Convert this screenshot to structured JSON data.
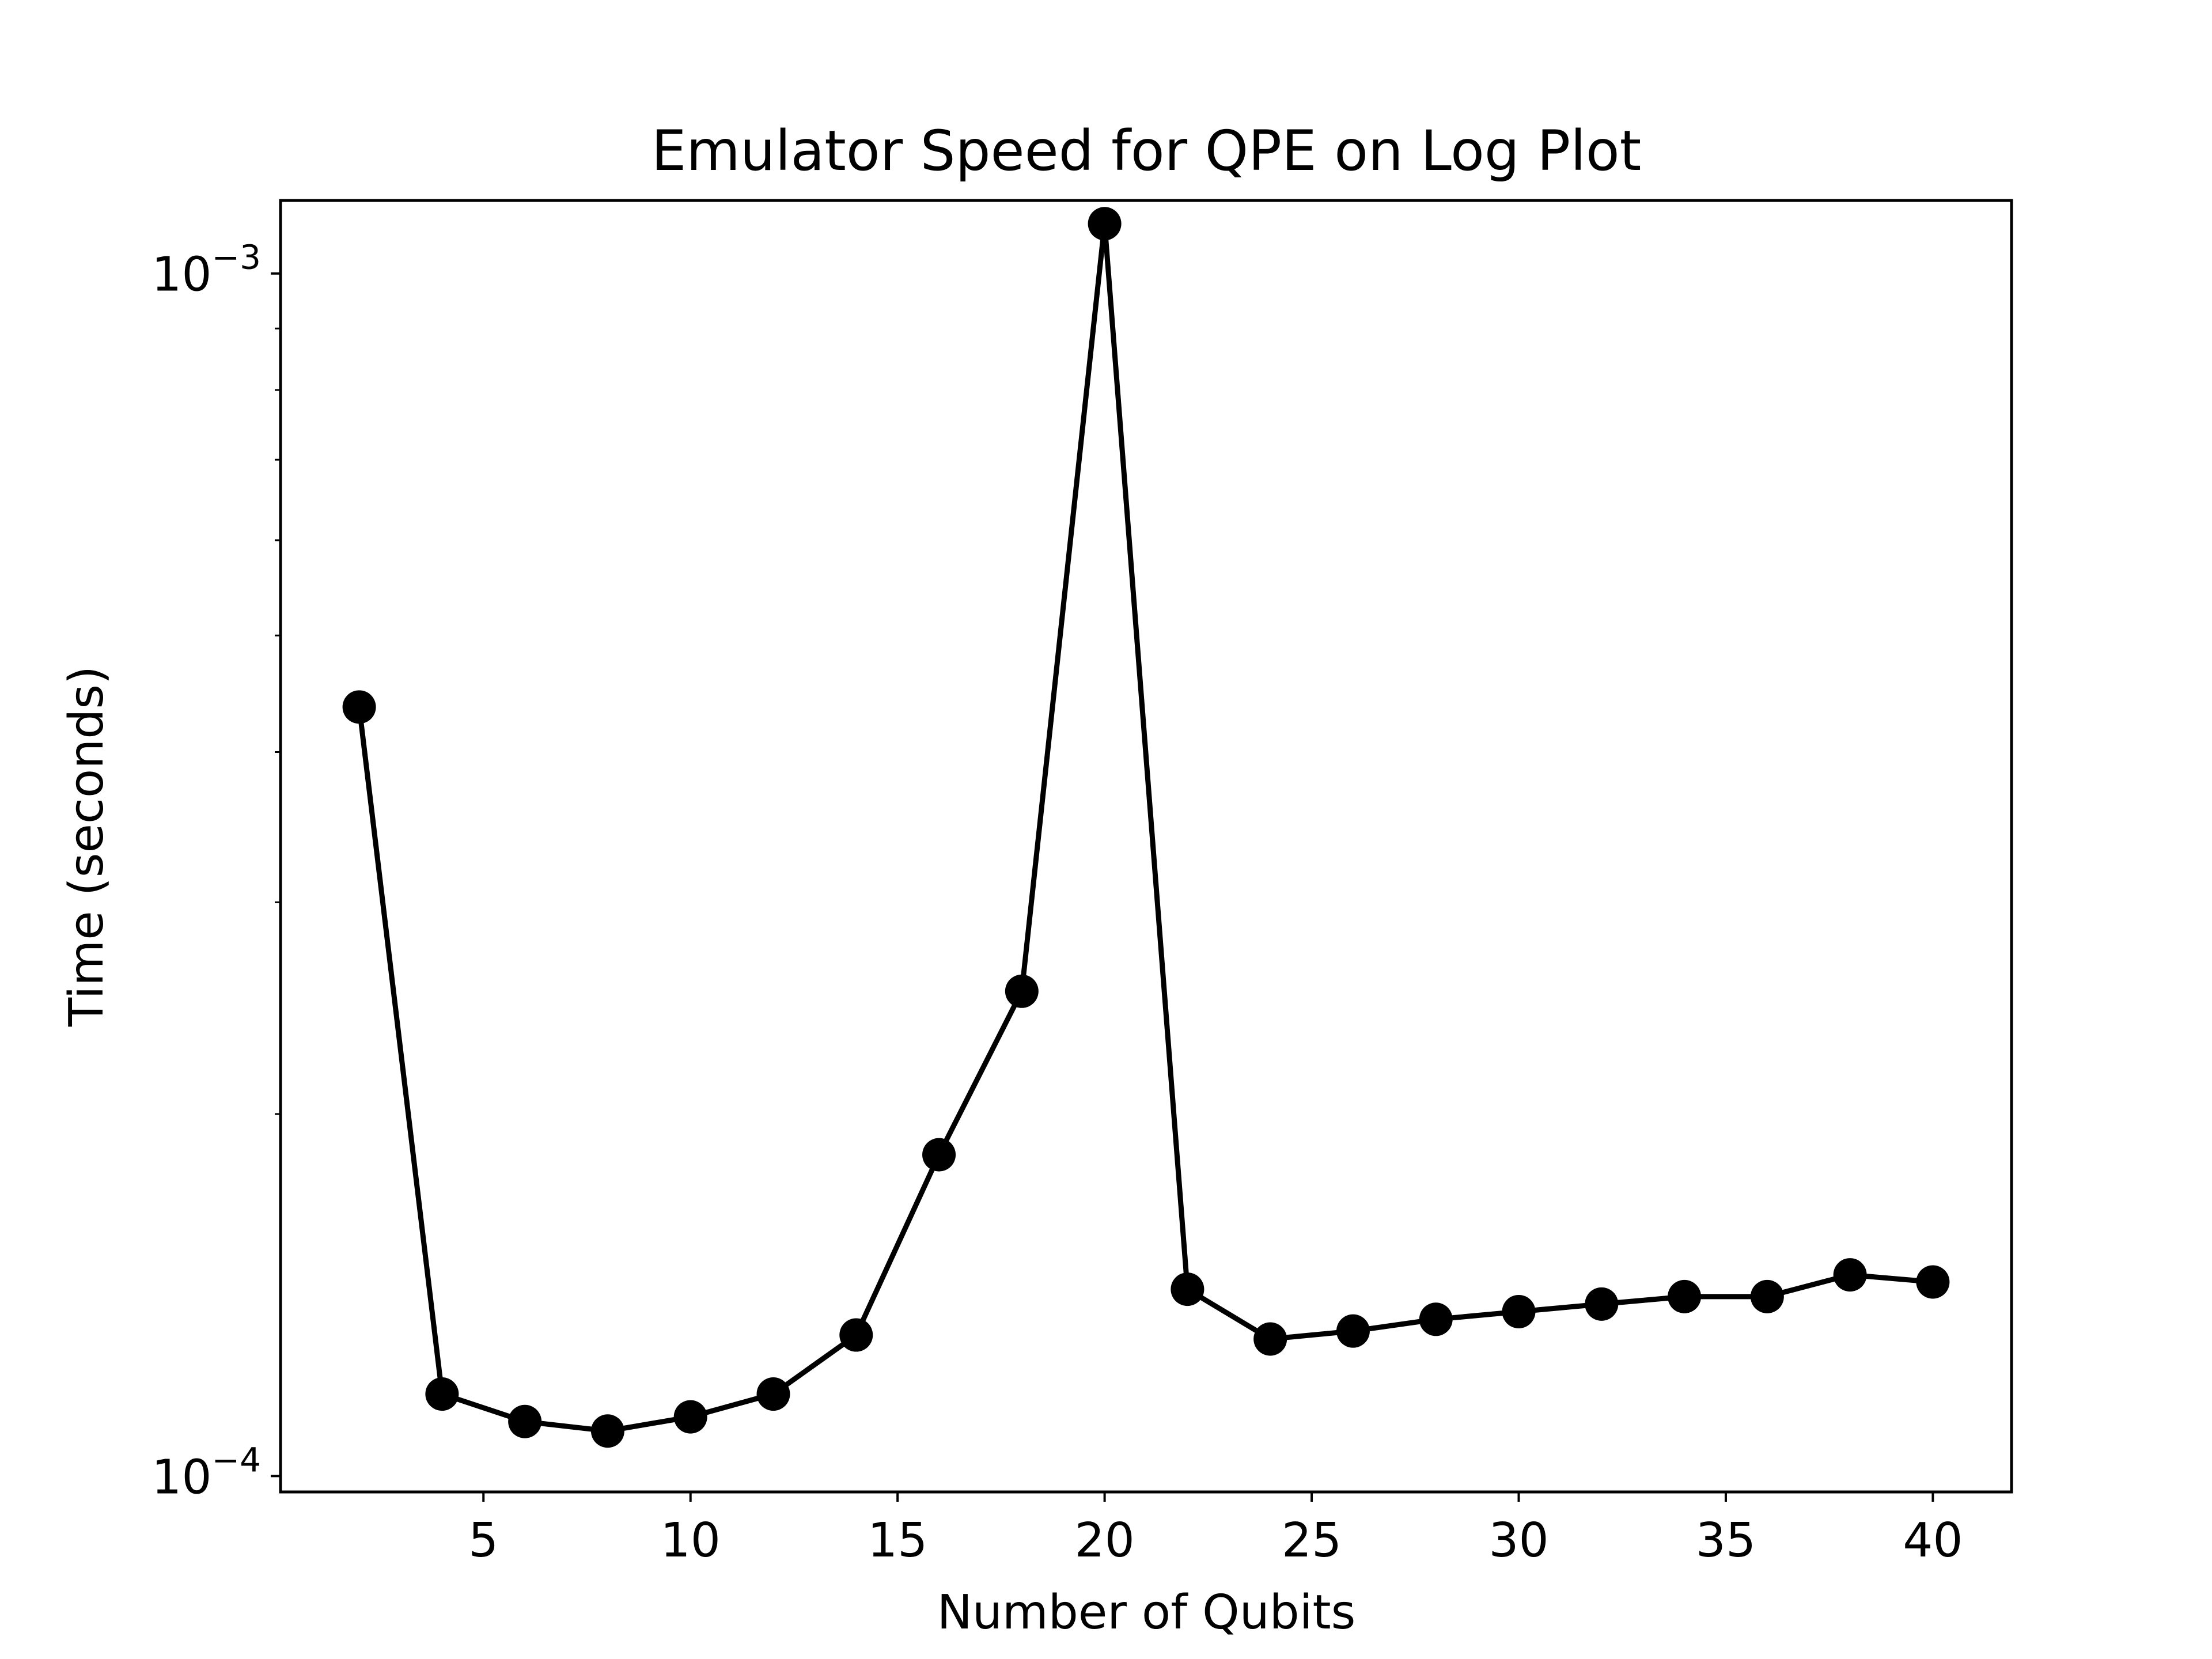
{
  "chart_data": {
    "type": "line",
    "title": "Emulator Speed for QPE on Log Plot",
    "xlabel": "Number of Qubits",
    "ylabel": "Time (seconds)",
    "xlim": [
      0.1,
      41.9
    ],
    "ylim": [
      9.7e-05,
      0.00115
    ],
    "yscale": "log",
    "grid": false,
    "x_ticks": [
      {
        "value": 5,
        "label": "5"
      },
      {
        "value": 10,
        "label": "10"
      },
      {
        "value": 15,
        "label": "15"
      },
      {
        "value": 20,
        "label": "20"
      },
      {
        "value": 25,
        "label": "25"
      },
      {
        "value": 30,
        "label": "30"
      },
      {
        "value": 35,
        "label": "35"
      },
      {
        "value": 40,
        "label": "40"
      }
    ],
    "y_ticks": [
      {
        "value": 0.0001,
        "base": "10",
        "exponent": "−4"
      },
      {
        "value": 0.001,
        "base": "10",
        "exponent": "−3"
      }
    ],
    "y_minor_ticks": [
      0.0002,
      0.0003,
      0.0004,
      0.0005,
      0.0006,
      0.0007,
      0.0008,
      0.0009
    ],
    "series": [
      {
        "color": "#000000",
        "marker": "circle",
        "x": [
          2,
          4,
          6,
          8,
          10,
          12,
          14,
          16,
          18,
          20,
          22,
          24,
          26,
          28,
          30,
          32,
          34,
          36,
          38,
          40
        ],
        "y": [
          0.000436,
          0.000117,
          0.000111,
          0.000109,
          0.000112,
          0.000117,
          0.000131,
          0.000185,
          0.000253,
          0.0011,
          0.000143,
          0.00013,
          0.000132,
          0.000135,
          0.000137,
          0.000139,
          0.000141,
          0.000141,
          0.000147,
          0.000145
        ]
      }
    ]
  }
}
